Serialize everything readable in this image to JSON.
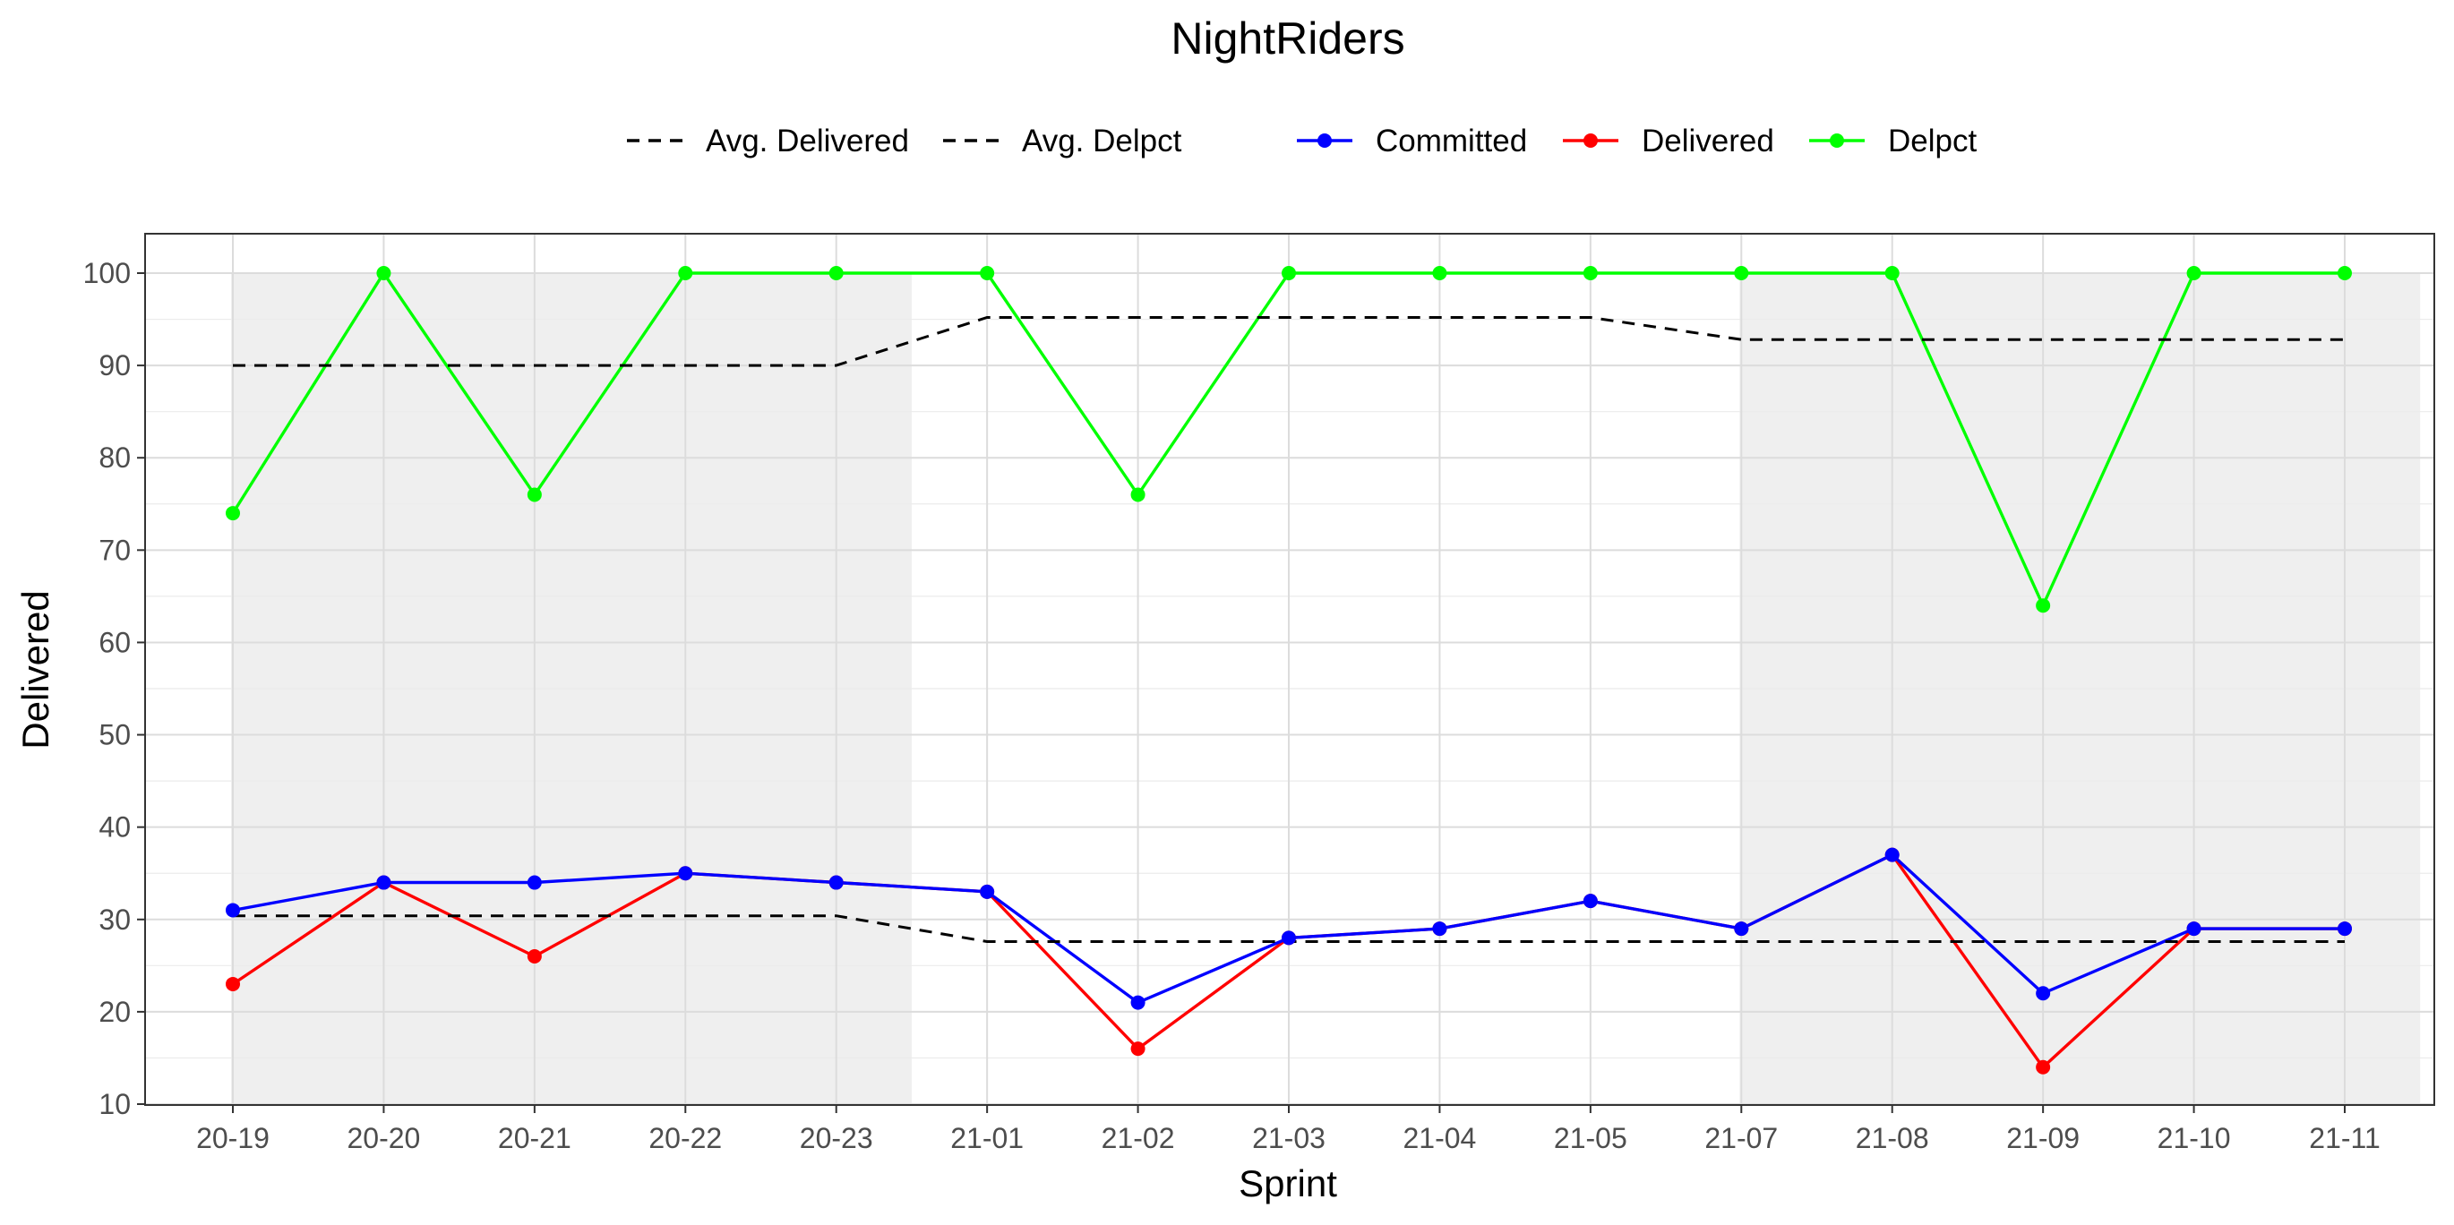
{
  "chart_data": {
    "type": "line",
    "title": "NightRiders",
    "xlabel": "Sprint",
    "ylabel": "Delivered",
    "categories": [
      "20-19",
      "20-20",
      "20-21",
      "20-22",
      "20-23",
      "21-01",
      "21-02",
      "21-03",
      "21-04",
      "21-05",
      "21-07",
      "21-08",
      "21-09",
      "21-10",
      "21-11"
    ],
    "ylim": [
      10,
      104
    ],
    "yticks": [
      10,
      20,
      30,
      40,
      50,
      60,
      70,
      80,
      90,
      100
    ],
    "grid": true,
    "legend_position": "top",
    "shaded_category_ranges": [
      [
        "20-19",
        "20-23"
      ],
      [
        "21-07",
        "21-11"
      ]
    ],
    "series": [
      {
        "name": "Committed",
        "color": "#0000ff",
        "style": "solid-with-points",
        "values": [
          31,
          34,
          34,
          35,
          34,
          33,
          21,
          28,
          29,
          32,
          29,
          37,
          22,
          29,
          29
        ]
      },
      {
        "name": "Delivered",
        "color": "#ff0000",
        "style": "solid-with-points",
        "values": [
          23,
          34,
          26,
          35,
          34,
          33,
          16,
          28,
          29,
          32,
          29,
          37,
          14,
          29,
          29
        ]
      },
      {
        "name": "Delpct",
        "color": "#00ff00",
        "style": "solid-with-points",
        "values": [
          74,
          100,
          76,
          100,
          100,
          100,
          76,
          100,
          100,
          100,
          100,
          100,
          64,
          100,
          100
        ]
      },
      {
        "name": "Avg. Delivered",
        "color": "#000000",
        "style": "dashed",
        "values": [
          30.4,
          30.4,
          30.4,
          30.4,
          30.4,
          27.6,
          27.6,
          27.6,
          27.6,
          27.6,
          27.6,
          27.6,
          27.6,
          27.6,
          27.6
        ]
      },
      {
        "name": "Avg. Delpct",
        "color": "#000000",
        "style": "dashed",
        "values": [
          90,
          90,
          90,
          90,
          90,
          95.2,
          95.2,
          95.2,
          95.2,
          95.2,
          92.8,
          92.8,
          92.8,
          92.8,
          92.8
        ]
      }
    ]
  }
}
